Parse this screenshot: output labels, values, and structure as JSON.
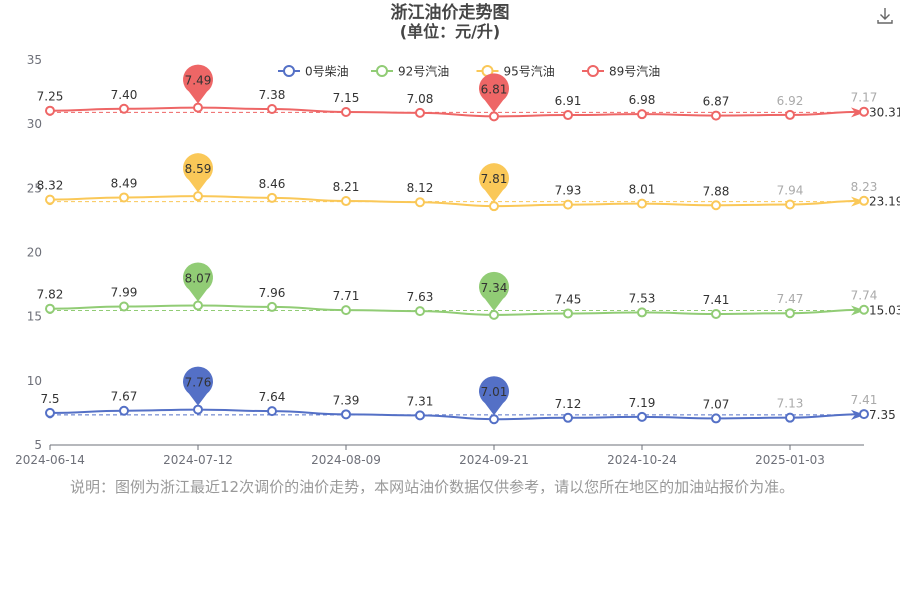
{
  "title": "浙江油价走势图",
  "subtitle": "(单位：元/升)",
  "note": "说明：图例为浙江最近12次调价的油价走势，本网站油价数据仅供参考，请以您所在地区的加油站报价为准。",
  "chart_data": {
    "type": "line",
    "x_ticks": [
      "2024-06-14",
      "2024-07-12",
      "2024-08-09",
      "2024-09-21",
      "2024-10-24",
      "2025-01-03"
    ],
    "y_ticks": [
      "5",
      "10",
      "15",
      "20",
      "25",
      "30",
      "35"
    ],
    "ylim": [
      5,
      35
    ],
    "legend_position": "top",
    "series": [
      {
        "name": "0号柴油",
        "color": "#5470c6",
        "labels": [
          "7.5",
          "7.67",
          "7.76",
          "7.64",
          "7.39",
          "7.31",
          "7.01",
          "7.12",
          "7.19",
          "7.07",
          "7.13",
          "7.41"
        ],
        "max_label": "7.76",
        "min_label": "7.01",
        "avg_label": "7.35"
      },
      {
        "name": "92号汽油",
        "color": "#91cc75",
        "labels": [
          "7.82",
          "7.99",
          "8.07",
          "7.96",
          "7.71",
          "7.63",
          "7.34",
          "7.45",
          "7.53",
          "7.41",
          "7.47",
          "7.74"
        ],
        "max_label": "8.07",
        "min_label": "7.34",
        "avg_label": "15.03"
      },
      {
        "name": "95号汽油",
        "color": "#fac858",
        "labels": [
          "8.32",
          "8.49",
          "8.59",
          "8.46",
          "8.21",
          "8.12",
          "7.81",
          "7.93",
          "8.01",
          "7.88",
          "7.94",
          "8.23"
        ],
        "max_label": "8.59",
        "min_label": "7.81",
        "avg_label": "23.19"
      },
      {
        "name": "89号汽油",
        "color": "#ee6666",
        "labels": [
          "7.25",
          "7.40",
          "7.49",
          "7.38",
          "7.15",
          "7.08",
          "6.81",
          "6.91",
          "6.98",
          "6.87",
          "6.92",
          "7.17"
        ],
        "max_label": "7.49",
        "min_label": "6.81",
        "avg_label": "30.31"
      }
    ]
  }
}
